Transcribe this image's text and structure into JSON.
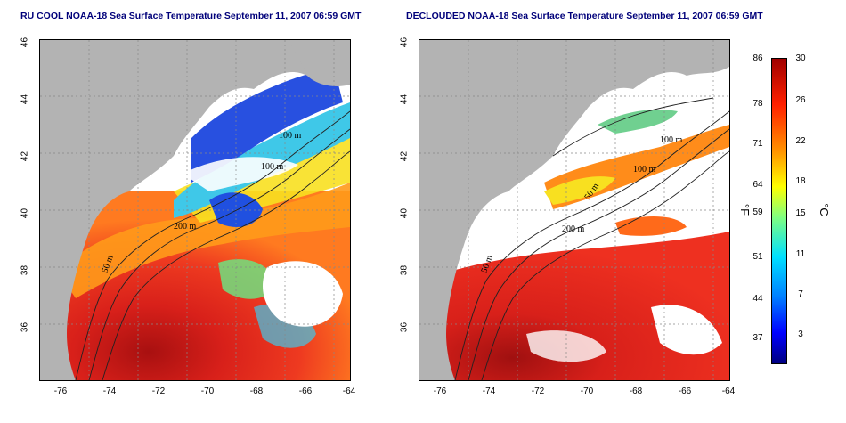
{
  "left_panel": {
    "title": "RU COOL NOAA-18 Sea Surface Temperature September 11, 2007 06:59 GMT",
    "isobath_labels": [
      "100 m",
      "200 m",
      "50 m",
      "100 m"
    ]
  },
  "right_panel": {
    "title": "DECLOUDED NOAA-18 Sea Surface Temperature September 11, 2007 06:59 GMT",
    "isobath_labels": [
      "100 m",
      "100 m",
      "50 m",
      "200 m",
      "50 m"
    ]
  },
  "axes": {
    "y_ticks": [
      "46",
      "44",
      "42",
      "40",
      "38",
      "36"
    ],
    "x_ticks": [
      "-76",
      "-74",
      "-72",
      "-70",
      "-68",
      "-66",
      "-64"
    ]
  },
  "colorbar": {
    "f_ticks": [
      "86",
      "78",
      "71",
      "64",
      "59",
      "51",
      "44",
      "37"
    ],
    "c_ticks": [
      "30",
      "26",
      "22",
      "18",
      "15",
      "11",
      "7",
      "3"
    ],
    "f_unit": "°F",
    "c_unit": "°C",
    "colors": [
      "#000080",
      "#0000ff",
      "#0080ff",
      "#00ffff",
      "#80ff80",
      "#ffff00",
      "#ff8000",
      "#ff0000",
      "#800000"
    ]
  },
  "colors": {
    "land": "#b3b3b3",
    "cloud": "#ffffff",
    "warm": "#e8261c",
    "hot": "#b01010",
    "mid": "#ff9a1a",
    "cool": "#3fc8e8",
    "cold": "#1a3fd8",
    "isobath": "#222222"
  }
}
